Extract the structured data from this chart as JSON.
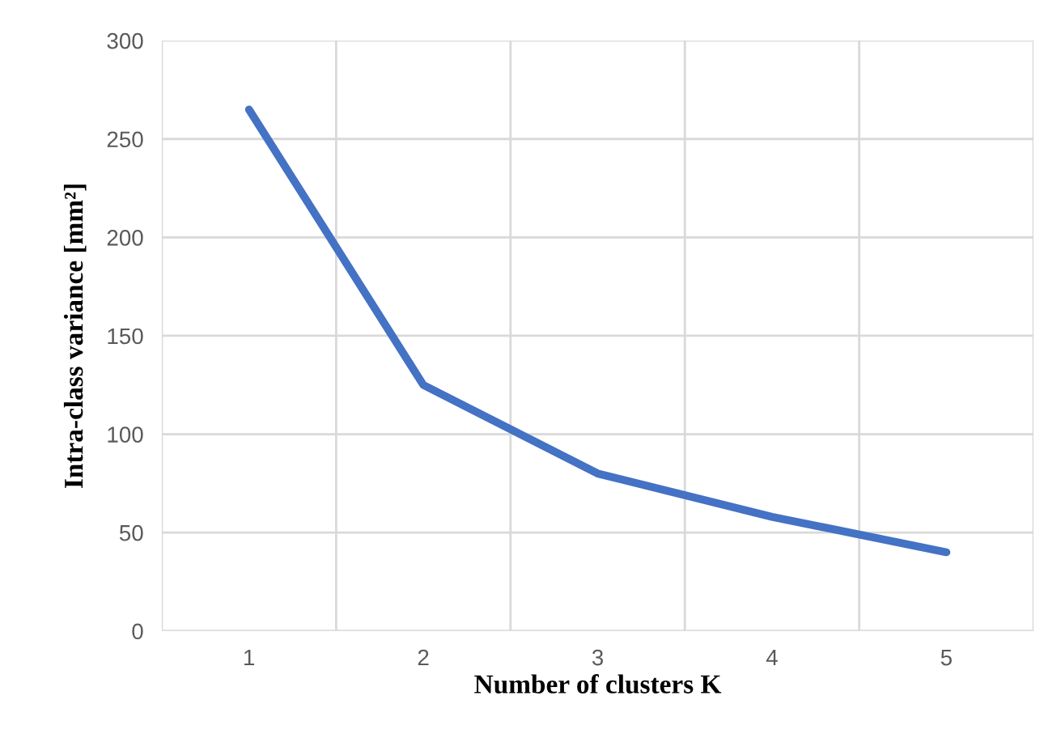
{
  "chart_data": {
    "type": "line",
    "xlabel": "Number of clusters K",
    "ylabel": "Intra-class variance [mm²]",
    "categories": [
      "1",
      "2",
      "3",
      "4",
      "5"
    ],
    "series": [
      {
        "color": "#4472c4",
        "values": [
          265,
          125,
          80,
          58,
          40
        ]
      }
    ],
    "ylim": [
      0,
      300
    ],
    "yticks": [
      0,
      50,
      100,
      150,
      200,
      250,
      300
    ],
    "grid": true,
    "marker": "none",
    "line_style": "solid"
  }
}
